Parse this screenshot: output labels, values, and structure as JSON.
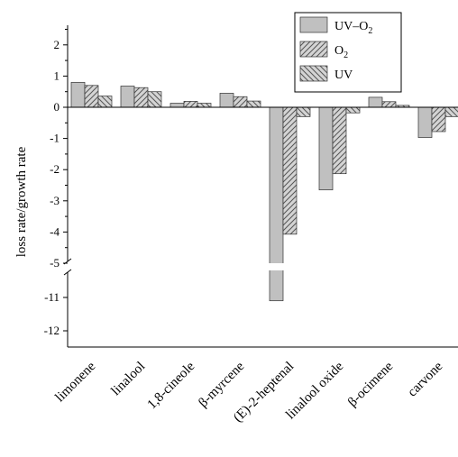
{
  "chart_data": {
    "type": "bar",
    "title": "",
    "xlabel": "",
    "ylabel": "loss rate/growth rate",
    "categories": [
      "limonene",
      "linalool",
      "1,8-cineole",
      "β-myrcene",
      "(E)-2-heptenal",
      "linalool oxide",
      "β-ocimene",
      "carvone"
    ],
    "series": [
      {
        "name": "UV–O",
        "name_subscript": "2",
        "pattern": "solid",
        "color": "#c0c0c0",
        "values": [
          0.8,
          0.68,
          0.13,
          0.45,
          -11.1,
          -2.65,
          0.32,
          -0.97
        ]
      },
      {
        "name": "O",
        "name_subscript": "2",
        "pattern": "hatch-forward",
        "color": "#c0c0c0",
        "values": [
          0.7,
          0.63,
          0.19,
          0.34,
          -4.07,
          -2.13,
          0.18,
          -0.78
        ]
      },
      {
        "name": "UV",
        "name_subscript": "",
        "pattern": "hatch-backward",
        "color": "#c0c0c0",
        "values": [
          0.36,
          0.5,
          0.13,
          0.2,
          -0.3,
          -0.18,
          0.06,
          -0.3
        ]
      }
    ],
    "y_axis": {
      "broken": true,
      "upper_segment": [
        -5,
        2.5
      ],
      "lower_segment": [
        -12.5,
        -10.5
      ],
      "upper_ticks": [
        2,
        1,
        0,
        -1,
        -2,
        -3,
        -4,
        -5
      ],
      "lower_ticks": [
        -11,
        -12
      ]
    },
    "tick_labels": [
      "2",
      "1",
      "0",
      "-1",
      "-2",
      "-3",
      "-4",
      "-5",
      "-11",
      "-12"
    ],
    "legend_position": "top-right",
    "grid": false
  }
}
